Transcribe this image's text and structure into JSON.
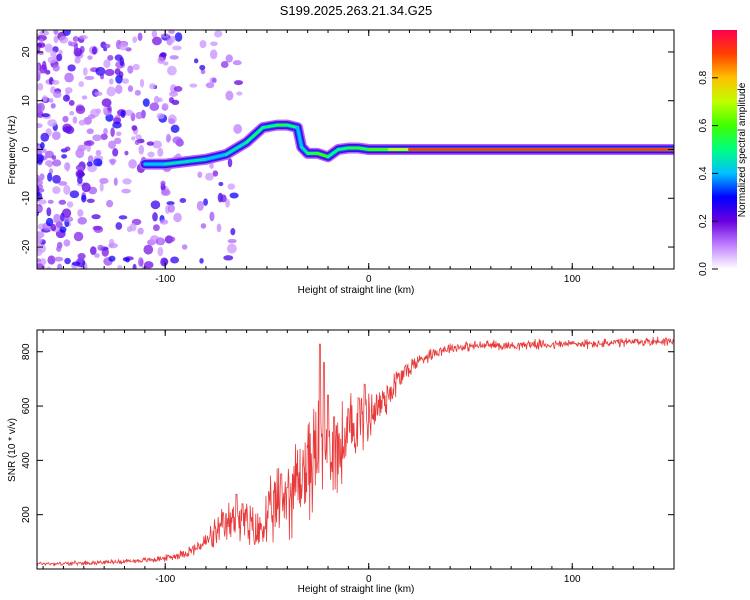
{
  "figure_title": "S199.2025.263.21.34.G25",
  "chart_data": [
    {
      "type": "heatmap",
      "title": "S199.2025.263.21.34.G25",
      "xlabel": "Height of straight line (km)",
      "ylabel": "Frequency (Hz)",
      "xlim": [
        -163,
        150
      ],
      "ylim": [
        -24.5,
        24.5
      ],
      "x_ticks": [
        -100,
        0,
        100
      ],
      "x_tick_labels": [
        "-100",
        "0",
        "100"
      ],
      "y_ticks": [
        -20,
        -10,
        0,
        10,
        20
      ],
      "y_tick_labels": [
        "-20",
        "-10",
        "0",
        "10",
        "20"
      ],
      "colorbar": {
        "label": "Normalized spectral amplitude",
        "range": [
          0,
          1
        ],
        "ticks": [
          0.0,
          0.2,
          0.4,
          0.6,
          0.8
        ],
        "tick_labels": [
          "0.0",
          "0.2",
          "0.4",
          "0.6",
          "0.8"
        ],
        "colors": [
          "#ffffff",
          "#c080ff",
          "#6a00e0",
          "#0000ff",
          "#00c0ff",
          "#00ff80",
          "#40ff00",
          "#c0ff00",
          "#ffc000",
          "#ff4000",
          "#ff0050"
        ]
      },
      "ridge": {
        "x": [
          -110,
          -100,
          -90,
          -80,
          -70,
          -60,
          -52,
          -45,
          -40,
          -35,
          -33,
          -30,
          -25,
          -20,
          -15,
          -10,
          -5,
          0,
          5,
          10,
          15,
          20,
          150
        ],
        "frequency": [
          -3,
          -3,
          -2.5,
          -2,
          -1,
          1.5,
          4.5,
          5,
          5,
          4.5,
          0.5,
          -0.8,
          -0.8,
          -1.5,
          0,
          0.3,
          0.3,
          0,
          0,
          0,
          0,
          0,
          0
        ],
        "amplitude": [
          0.4,
          0.45,
          0.45,
          0.4,
          0.45,
          0.5,
          0.5,
          0.55,
          0.5,
          0.4,
          0.45,
          0.55,
          0.6,
          0.5,
          0.5,
          0.55,
          0.55,
          0.6,
          0.6,
          0.7,
          0.7,
          0.9,
          0.9
        ]
      }
    },
    {
      "type": "line",
      "xlabel": "Height of straight line (km)",
      "ylabel": "SNR (10 * v/v)",
      "xlim": [
        -163,
        150
      ],
      "ylim": [
        0,
        880
      ],
      "x_ticks": [
        -100,
        0,
        100
      ],
      "x_tick_labels": [
        "-100",
        "0",
        "100"
      ],
      "y_ticks": [
        200,
        400,
        600,
        800
      ],
      "y_tick_labels": [
        "200",
        "400",
        "600",
        "800"
      ],
      "series": [
        {
          "name": "SNR",
          "color": "#e83a3a",
          "x": [
            -163,
            -150,
            -140,
            -130,
            -120,
            -110,
            -100,
            -95,
            -90,
            -85,
            -80,
            -75,
            -70,
            -65,
            -60,
            -55,
            -50,
            -45,
            -40,
            -35,
            -30,
            -25,
            -20,
            -15,
            -10,
            -5,
            0,
            5,
            10,
            15,
            20,
            25,
            30,
            35,
            40,
            50,
            60,
            70,
            80,
            90,
            100,
            110,
            120,
            130,
            140,
            150
          ],
          "values": [
            20,
            20,
            22,
            25,
            28,
            32,
            40,
            48,
            60,
            75,
            100,
            130,
            160,
            190,
            160,
            130,
            180,
            230,
            280,
            320,
            380,
            420,
            430,
            440,
            480,
            540,
            570,
            600,
            650,
            700,
            740,
            770,
            790,
            805,
            815,
            820,
            825,
            822,
            828,
            825,
            830,
            828,
            832,
            835,
            838,
            840
          ],
          "noise": [
            6,
            6,
            6,
            6,
            7,
            8,
            10,
            12,
            15,
            20,
            30,
            50,
            60,
            70,
            80,
            70,
            90,
            120,
            140,
            150,
            160,
            170,
            150,
            140,
            130,
            110,
            90,
            70,
            60,
            45,
            30,
            22,
            20,
            18,
            16,
            15,
            15,
            14,
            14,
            14,
            14,
            14,
            14,
            14,
            14,
            14
          ],
          "spikes": [
            [
              -65,
              275
            ],
            [
              -62,
              240
            ],
            [
              -43,
              350
            ],
            [
              -40,
              300
            ],
            [
              -24,
              828
            ],
            [
              -22,
              760
            ],
            [
              -20,
              640
            ],
            [
              -17,
              560
            ],
            [
              -10,
              590
            ],
            [
              -5,
              630
            ],
            [
              -2,
              680
            ]
          ]
        }
      ]
    }
  ]
}
